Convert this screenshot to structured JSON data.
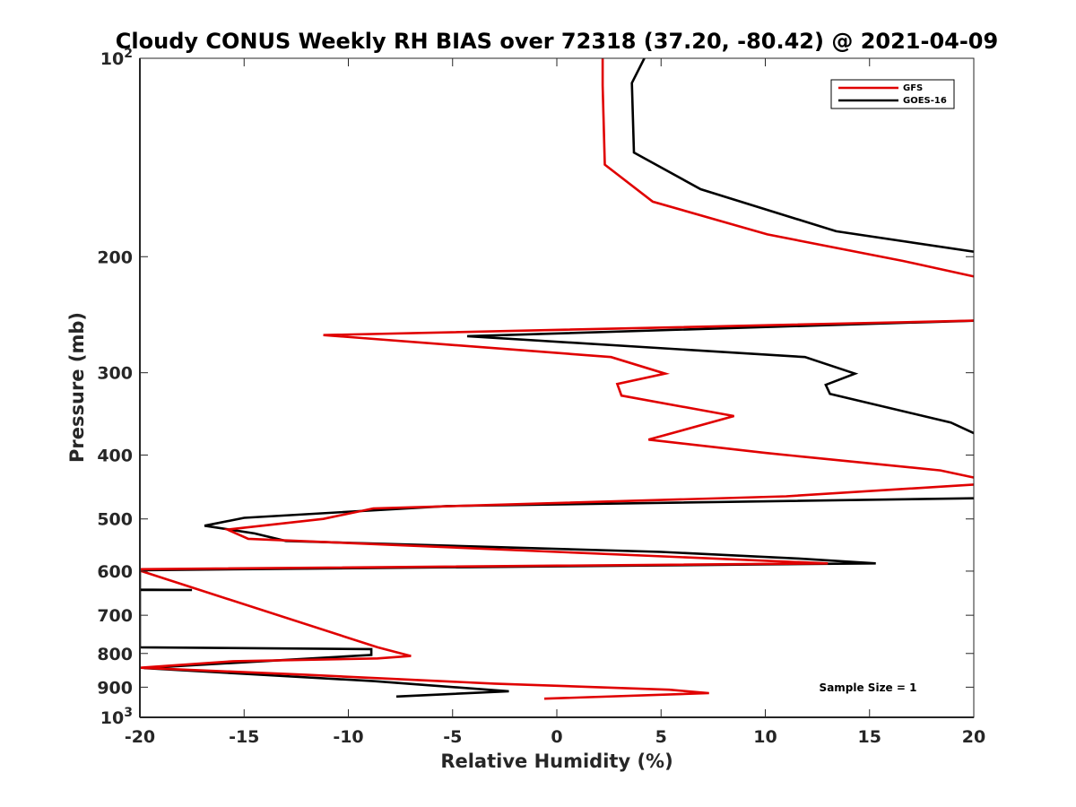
{
  "chart_data": {
    "type": "line",
    "title": "Cloudy CONUS Weekly RH BIAS over 72318 (37.20, -80.42) @ 2021-04-09",
    "xlabel": "Relative Humidity (%)",
    "ylabel": "Pressure (mb)",
    "xlim": [
      -20,
      20
    ],
    "ylim": [
      100,
      1000
    ],
    "yscale": "log",
    "yreversed": true,
    "xticks": [
      -20,
      -15,
      -10,
      -5,
      0,
      5,
      10,
      15,
      20
    ],
    "xtick_labels": [
      "-20",
      "-15",
      "-10",
      "-5",
      "0",
      "5",
      "10",
      "15",
      "20"
    ],
    "yticks": [
      {
        "value": 100,
        "base": "10",
        "exp": "2"
      },
      {
        "value": 200,
        "label": "200"
      },
      {
        "value": 300,
        "label": "300"
      },
      {
        "value": 400,
        "label": "400"
      },
      {
        "value": 500,
        "label": "500"
      },
      {
        "value": 600,
        "label": "600"
      },
      {
        "value": 700,
        "label": "700"
      },
      {
        "value": 800,
        "label": "800"
      },
      {
        "value": 900,
        "label": "900"
      },
      {
        "value": 1000,
        "base": "10",
        "exp": "3"
      }
    ],
    "grid": false,
    "legend_position": "top-right",
    "annotation": "Sample Size = 1",
    "series": [
      {
        "name": "GFS",
        "color": "#e00000",
        "x": [
          2.2,
          2.2,
          2.3,
          4.6,
          10.1,
          16.6,
          20.2,
          20.2,
          -11.2,
          2.6,
          5.2,
          2.9,
          3.1,
          8.5,
          4.4,
          10.0,
          18.4,
          20.2,
          20.2,
          11.0,
          -8.8,
          -11.2,
          -15.8,
          -14.8,
          13.0,
          -20.0,
          -20.0,
          -8.6,
          -7.0,
          -8.6,
          -15.5,
          -20.0,
          -12.0,
          -3.0,
          5.4,
          7.3,
          -0.6
        ],
        "y": [
          100,
          110,
          145,
          165,
          185,
          203,
          215,
          250,
          263,
          284,
          301,
          312,
          325,
          349,
          379,
          397,
          422,
          434,
          443,
          462,
          482,
          500,
          519,
          536,
          584,
          596,
          599,
          783,
          807,
          814,
          822,
          841,
          862,
          889,
          908,
          919,
          937
        ]
      },
      {
        "name": "GOES-16",
        "color": "#000000",
        "x": [
          4.2,
          3.6,
          3.7,
          6.9,
          13.4,
          20.2,
          20.2,
          -4.3,
          11.9,
          14.3,
          12.9,
          13.1,
          18.9,
          20.2,
          20.2,
          -5.3,
          -15.0,
          -16.9,
          -14.5,
          -13.0,
          5.0,
          11.5,
          15.3,
          -20.0,
          -20.0,
          -17.5,
          -20.0,
          -20.0,
          -8.9,
          -8.9,
          -19.8,
          -15.0,
          -8.8,
          -2.3,
          -7.7
        ],
        "y": [
          100,
          109,
          139,
          158,
          183,
          197,
          250,
          264,
          284,
          301,
          313,
          323,
          357,
          373,
          465,
          478,
          498,
          512,
          526,
          540,
          561,
          574,
          584,
          598,
          640,
          641,
          641,
          783,
          788,
          804,
          842,
          859,
          881,
          913,
          930
        ]
      }
    ]
  }
}
